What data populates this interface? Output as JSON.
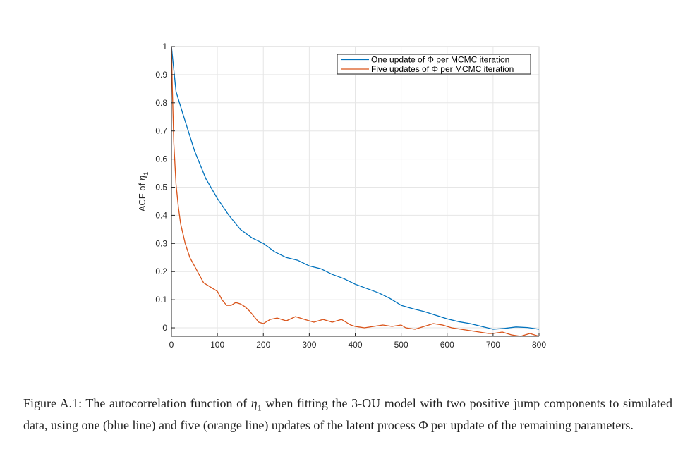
{
  "chart_data": {
    "type": "line",
    "title": "",
    "xlabel": "",
    "ylabel_prefix": "ACF of ",
    "ylabel_symbol": "η",
    "ylabel_subscript": "1",
    "xlim": [
      0,
      800
    ],
    "ylim": [
      -0.03,
      1
    ],
    "grid": true,
    "legend_position": "top-right",
    "x_ticks": [
      0,
      100,
      200,
      300,
      400,
      500,
      600,
      700,
      800
    ],
    "x_tick_labels": [
      "0",
      "100",
      "200",
      "300",
      "400",
      "500",
      "600",
      "700",
      "800"
    ],
    "y_ticks": [
      0,
      0.1,
      0.2,
      0.3,
      0.4,
      0.5,
      0.6,
      0.7,
      0.8,
      0.9,
      1
    ],
    "y_tick_labels": [
      "0",
      "0.1",
      "0.2",
      "0.3",
      "0.4",
      "0.5",
      "0.6",
      "0.7",
      "0.8",
      "0.9",
      "1"
    ],
    "series": [
      {
        "name": "One update of Φ per MCMC iteration",
        "color": "#0072BD",
        "x": [
          0,
          10,
          25,
          50,
          75,
          100,
          125,
          150,
          175,
          200,
          225,
          250,
          275,
          300,
          325,
          350,
          375,
          400,
          425,
          450,
          475,
          500,
          525,
          550,
          575,
          600,
          625,
          650,
          675,
          700,
          725,
          750,
          775,
          800
        ],
        "values": [
          1.0,
          0.84,
          0.76,
          0.63,
          0.53,
          0.46,
          0.4,
          0.35,
          0.32,
          0.3,
          0.27,
          0.25,
          0.24,
          0.22,
          0.21,
          0.19,
          0.175,
          0.155,
          0.14,
          0.125,
          0.105,
          0.08,
          0.068,
          0.058,
          0.045,
          0.032,
          0.022,
          0.015,
          0.005,
          -0.005,
          -0.002,
          0.003,
          0.001,
          -0.005
        ]
      },
      {
        "name": "Five updates of Φ per MCMC iteration",
        "color": "#D95319",
        "x": [
          0,
          2,
          5,
          10,
          15,
          20,
          30,
          40,
          50,
          60,
          70,
          80,
          90,
          100,
          110,
          120,
          130,
          140,
          150,
          160,
          170,
          180,
          190,
          200,
          215,
          230,
          250,
          270,
          290,
          310,
          330,
          350,
          370,
          390,
          400,
          420,
          440,
          460,
          480,
          500,
          510,
          530,
          550,
          570,
          590,
          610,
          630,
          650,
          670,
          690,
          700,
          720,
          740,
          760,
          780,
          800
        ],
        "values": [
          1.0,
          0.85,
          0.66,
          0.51,
          0.43,
          0.37,
          0.3,
          0.25,
          0.22,
          0.19,
          0.16,
          0.15,
          0.14,
          0.13,
          0.1,
          0.08,
          0.08,
          0.09,
          0.085,
          0.075,
          0.06,
          0.04,
          0.02,
          0.015,
          0.03,
          0.035,
          0.025,
          0.04,
          0.03,
          0.02,
          0.03,
          0.02,
          0.03,
          0.01,
          0.005,
          0.0,
          0.005,
          0.01,
          0.005,
          0.01,
          0.0,
          -0.005,
          0.005,
          0.015,
          0.01,
          0.0,
          -0.005,
          -0.01,
          -0.015,
          -0.02,
          -0.02,
          -0.015,
          -0.025,
          -0.03,
          -0.02,
          -0.03
        ]
      }
    ]
  },
  "caption": {
    "label": "Figure A.1: ",
    "text_before": "The autocorrelation function of ",
    "symbol": "η",
    "subscript": "1",
    "text_middle": " when fitting the 3-OU model with two positive jump components to simulated data, using one (blue line) and five (orange line) updates of the latent process ",
    "process_symbol": "Φ",
    "text_after": " per update of the remaining parameters."
  }
}
